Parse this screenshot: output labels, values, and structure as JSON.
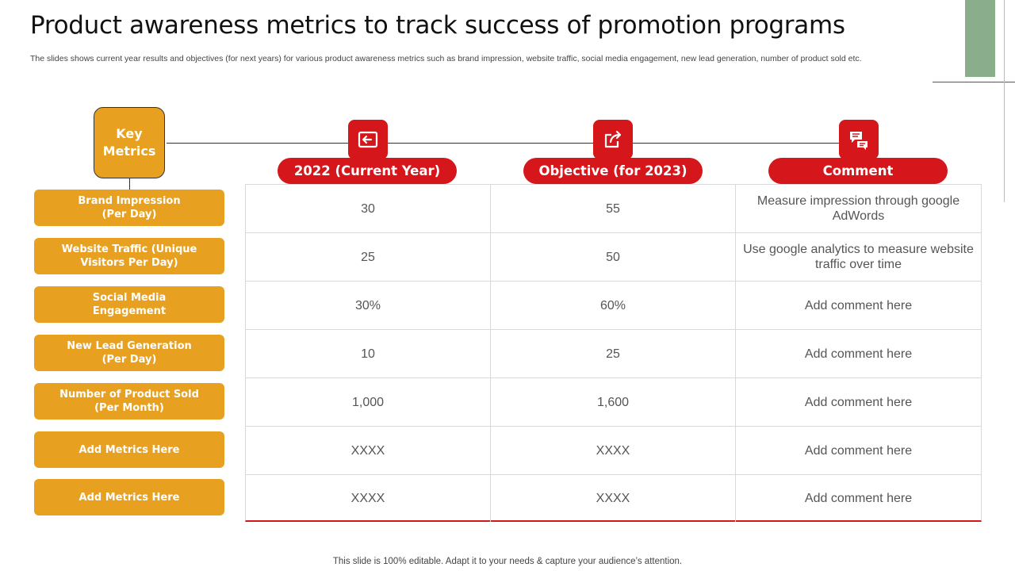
{
  "title": "Product awareness metrics to track success of promotion programs",
  "subtitle": "The slides shows current year results and objectives (for next years) for various product awareness metrics such as brand impression, website traffic, social media engagement, new lead generation, number of product sold etc.",
  "key_metrics_label": "Key Metrics",
  "columns": [
    {
      "label": "2022 (Current Year)",
      "icon": "exit-door-icon"
    },
    {
      "label": "Objective (for 2023)",
      "icon": "share-arrow-icon"
    },
    {
      "label": "Comment",
      "icon": "chat-bubbles-icon"
    }
  ],
  "metrics": [
    "Brand Impression\n(Per Day)",
    "Website Traffic (Unique\nVisitors Per Day)",
    "Social Media\nEngagement",
    "New Lead Generation\n(Per Day)",
    "Number of Product Sold\n(Per Month)",
    "Add Metrics Here",
    "Add Metrics Here"
  ],
  "rows": [
    {
      "current": "30",
      "objective": "55",
      "comment": "Measure impression through google AdWords"
    },
    {
      "current": "25",
      "objective": "50",
      "comment": "Use google analytics to measure website traffic over time"
    },
    {
      "current": "30%",
      "objective": "60%",
      "comment": "Add comment here"
    },
    {
      "current": "10",
      "objective": "25",
      "comment": "Add comment here"
    },
    {
      "current": "1,000",
      "objective": "1,600",
      "comment": "Add comment here"
    },
    {
      "current": "XXXX",
      "objective": "XXXX",
      "comment": "Add comment here"
    },
    {
      "current": "XXXX",
      "objective": "XXXX",
      "comment": "Add comment here"
    }
  ],
  "footer": "This slide is 100% editable. Adapt it to your needs & capture your audience’s attention.",
  "colors": {
    "accent_red": "#d5161b",
    "accent_orange": "#e8a020",
    "accent_green": "#8aae8c"
  }
}
